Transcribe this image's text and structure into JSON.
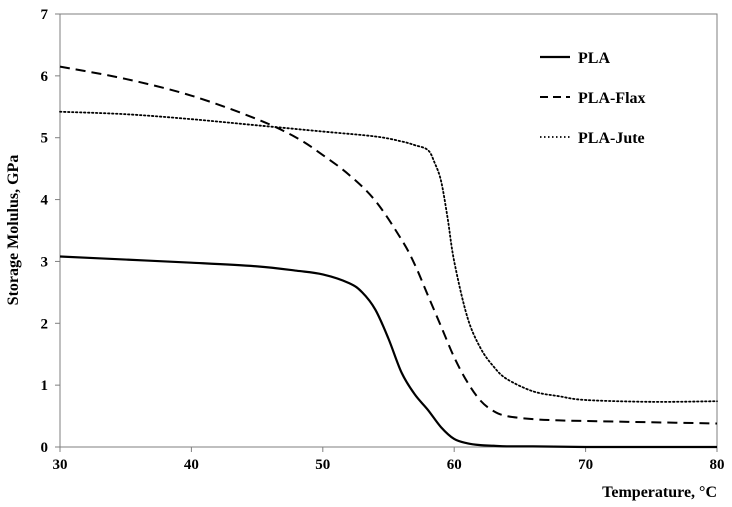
{
  "chart_data": {
    "type": "line",
    "title": "",
    "xlabel": "Temperature, °C",
    "ylabel": "Storage Molulus, GPa",
    "xlim": [
      30,
      80
    ],
    "ylim": [
      0,
      7
    ],
    "xticks": [
      30,
      40,
      50,
      60,
      70,
      80
    ],
    "yticks": [
      0,
      1,
      2,
      3,
      4,
      5,
      6,
      7
    ],
    "grid": false,
    "legend_position": "top-right",
    "series": [
      {
        "name": "PLA",
        "style": "solid",
        "color": "#000000",
        "x": [
          30,
          35,
          40,
          45,
          48,
          50,
          52,
          53,
          54,
          55,
          56,
          57,
          58,
          59,
          60,
          61,
          62,
          63,
          64,
          66,
          70,
          75,
          80
        ],
        "y": [
          3.08,
          3.03,
          2.98,
          2.92,
          2.85,
          2.79,
          2.65,
          2.5,
          2.22,
          1.75,
          1.2,
          0.85,
          0.6,
          0.32,
          0.13,
          0.06,
          0.03,
          0.02,
          0.01,
          0.01,
          0.0,
          0.0,
          0.0
        ]
      },
      {
        "name": "PLA-Flax",
        "style": "dashed",
        "color": "#000000",
        "x": [
          30,
          35,
          40,
          45,
          48,
          50,
          52,
          54,
          56,
          57,
          58,
          59,
          60,
          61,
          62,
          63,
          64,
          66,
          68,
          70,
          75,
          80
        ],
        "y": [
          6.15,
          5.95,
          5.68,
          5.3,
          5.0,
          4.72,
          4.4,
          3.98,
          3.35,
          2.95,
          2.45,
          1.95,
          1.45,
          1.05,
          0.75,
          0.58,
          0.5,
          0.45,
          0.43,
          0.42,
          0.4,
          0.38
        ]
      },
      {
        "name": "PLA-Jute",
        "style": "dotted",
        "color": "#000000",
        "x": [
          30,
          35,
          40,
          45,
          50,
          54,
          56,
          57,
          58,
          58.5,
          59,
          59.5,
          60,
          61,
          62,
          63,
          64,
          66,
          68,
          70,
          75,
          80
        ],
        "y": [
          5.42,
          5.38,
          5.3,
          5.2,
          5.1,
          5.02,
          4.94,
          4.88,
          4.8,
          4.6,
          4.3,
          3.7,
          3.0,
          2.1,
          1.6,
          1.3,
          1.1,
          0.9,
          0.82,
          0.76,
          0.73,
          0.74
        ]
      }
    ]
  }
}
